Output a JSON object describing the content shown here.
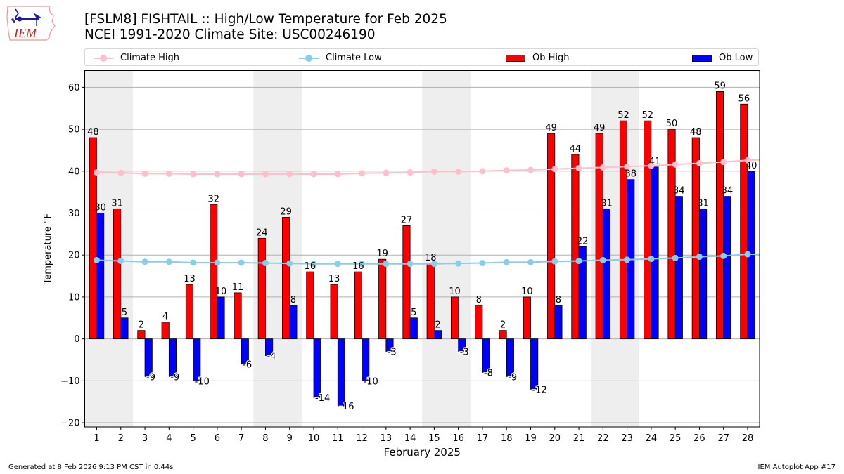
{
  "header": {
    "title_line1": "[FSLM8] FISHTAIL :: High/Low Temperature for Feb 2025",
    "title_line2": "NCEI 1991-2020 Climate Site: USC00246190",
    "logo_text": "IEM"
  },
  "footer": {
    "generated": "Generated at 8 Feb 2026 9:13 PM CST in 0.44s",
    "app": "IEM Autoplot App #17"
  },
  "colors": {
    "ob_high": "#ff0000",
    "ob_low": "#0000ff",
    "climate_high": "#ffc0cb",
    "climate_low": "#87ceeb",
    "weekend_band": "#eeeeee",
    "grid": "#b0b0b0"
  },
  "chart_data": {
    "type": "bar",
    "xlabel": "February 2025",
    "ylabel": "Temperature °F",
    "ylim": [
      -21,
      64
    ],
    "yticks": [
      -20,
      -10,
      0,
      10,
      20,
      30,
      40,
      50,
      60
    ],
    "ytick_labels": [
      "−20",
      "−10",
      "0",
      "10",
      "20",
      "30",
      "40",
      "50",
      "60"
    ],
    "grid": "horizontal",
    "legend_position": "top (above plot, single row)",
    "categories": [
      "1",
      "2",
      "3",
      "4",
      "5",
      "6",
      "7",
      "8",
      "9",
      "10",
      "11",
      "12",
      "13",
      "14",
      "15",
      "16",
      "17",
      "18",
      "19",
      "20",
      "21",
      "22",
      "23",
      "24",
      "25",
      "26",
      "27",
      "28"
    ],
    "shaded_day_ranges": [
      [
        1,
        2
      ],
      [
        8,
        9
      ],
      [
        15,
        16
      ],
      [
        22,
        23
      ]
    ],
    "series": [
      {
        "name": "Climate High",
        "type": "line",
        "values": [
          39.7,
          39.6,
          39.4,
          39.4,
          39.3,
          39.3,
          39.3,
          39.3,
          39.3,
          39.3,
          39.3,
          39.5,
          39.6,
          39.7,
          39.9,
          39.9,
          40.0,
          40.2,
          40.3,
          40.5,
          40.7,
          40.9,
          41.1,
          41.3,
          41.6,
          41.9,
          42.2,
          42.6
        ]
      },
      {
        "name": "Climate Low",
        "type": "line",
        "values": [
          18.8,
          18.6,
          18.4,
          18.4,
          18.2,
          18.2,
          18.2,
          18.1,
          18.0,
          17.9,
          17.9,
          17.9,
          17.9,
          17.9,
          17.9,
          18.0,
          18.1,
          18.3,
          18.3,
          18.5,
          18.6,
          18.8,
          18.9,
          19.1,
          19.3,
          19.6,
          19.8,
          20.2
        ]
      },
      {
        "name": "Ob High",
        "type": "bar",
        "values": [
          48,
          31,
          2,
          4,
          13,
          32,
          11,
          24,
          29,
          16,
          13,
          16,
          19,
          27,
          18,
          10,
          8,
          2,
          10,
          49,
          44,
          49,
          52,
          52,
          50,
          48,
          59,
          56
        ]
      },
      {
        "name": "Ob Low",
        "type": "bar",
        "values": [
          30,
          5,
          -9,
          -9,
          -10,
          10,
          -6,
          -4,
          8,
          -14,
          -16,
          -10,
          -3,
          5,
          2,
          -3,
          -8,
          -9,
          -12,
          8,
          22,
          31,
          38,
          41,
          34,
          31,
          34,
          40
        ]
      }
    ]
  }
}
